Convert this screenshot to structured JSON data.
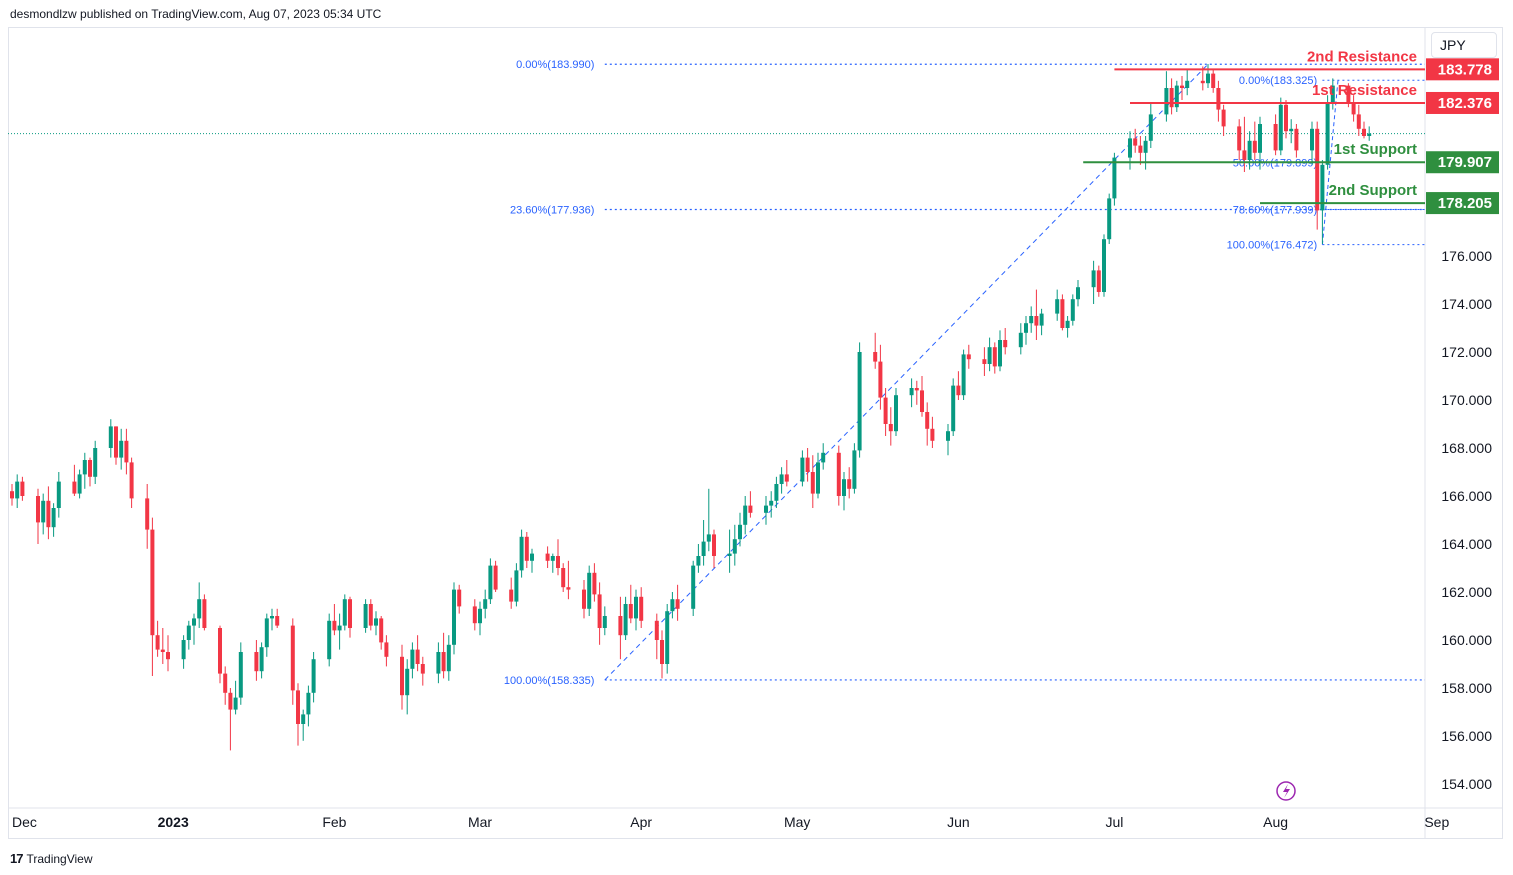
{
  "header": {
    "publisher_text": "desmondlzw published on TradingView.com, Aug 07, 2023 05:34 UTC"
  },
  "currency": "JPY",
  "footer": {
    "logo": "TradingView"
  },
  "colors": {
    "up": "#089981",
    "down": "#f23645",
    "fib": "#2962ff",
    "resistance": "#f23645",
    "support": "#2f8f3f",
    "price_line": "#089981"
  },
  "chart_data": {
    "type": "candlestick",
    "title": "JPY",
    "ylim": [
      153.0,
      185.5
    ],
    "y_ticks": [
      "154.000",
      "156.000",
      "158.000",
      "160.000",
      "162.000",
      "164.000",
      "166.000",
      "168.000",
      "170.000",
      "172.000",
      "174.000",
      "176.000"
    ],
    "y_tick_values": [
      154,
      156,
      158,
      160,
      162,
      164,
      166,
      168,
      170,
      172,
      174,
      176
    ],
    "x_labels": [
      {
        "label": "Dec",
        "day": 0
      },
      {
        "label": "2023",
        "day": 31
      },
      {
        "label": "Feb",
        "day": 62
      },
      {
        "label": "Mar",
        "day": 90
      },
      {
        "label": "Apr",
        "day": 121
      },
      {
        "label": "May",
        "day": 151
      },
      {
        "label": "Jun",
        "day": 182
      },
      {
        "label": "Jul",
        "day": 212
      },
      {
        "label": "Aug",
        "day": 243
      },
      {
        "label": "Sep",
        "day": 274
      }
    ],
    "bold_x_labels": [
      "2023"
    ],
    "current_price": 181.1,
    "levels": [
      {
        "name": "2nd Resistance",
        "value": 183.778,
        "label": "183.778",
        "kind": "resistance",
        "start_day": 212
      },
      {
        "name": "1st Resistance",
        "value": 182.376,
        "label": "182.376",
        "kind": "resistance",
        "start_day": 215
      },
      {
        "name": "1st Support",
        "value": 179.907,
        "label": "179.907",
        "kind": "support",
        "start_day": 206
      },
      {
        "name": "2nd Support",
        "value": 178.205,
        "label": "178.205",
        "kind": "support",
        "start_day": 240
      }
    ],
    "fib_left": [
      {
        "label": "0.00%(183.990)",
        "value": 183.99
      },
      {
        "label": "23.60%(177.936)",
        "value": 177.936
      },
      {
        "label": "100.00%(158.335)",
        "value": 158.335
      }
    ],
    "fib_right": [
      {
        "label": "0.00%(183.325)",
        "value": 183.325
      },
      {
        "label": "50.00%(179.899)",
        "value": 179.899
      },
      {
        "label": "78.60%(177.939)",
        "value": 177.939
      },
      {
        "label": "100.00%(176.472)",
        "value": 176.472
      }
    ],
    "candles": [
      [
        0,
        166.2,
        166.5,
        165.6,
        165.9
      ],
      [
        1,
        165.9,
        166.9,
        165.5,
        166.6
      ],
      [
        2,
        166.6,
        166.8,
        165.8,
        166.0
      ],
      [
        5,
        166.0,
        166.3,
        164.0,
        164.9
      ],
      [
        6,
        164.9,
        166.1,
        164.4,
        165.8
      ],
      [
        7,
        165.8,
        166.4,
        164.2,
        164.7
      ],
      [
        8,
        164.7,
        165.7,
        164.3,
        165.5
      ],
      [
        9,
        165.5,
        167.0,
        165.1,
        166.6
      ],
      [
        12,
        166.6,
        167.3,
        166.0,
        166.1
      ],
      [
        13,
        166.1,
        167.1,
        165.9,
        166.9
      ],
      [
        14,
        166.9,
        167.8,
        166.3,
        167.5
      ],
      [
        15,
        167.5,
        167.6,
        166.4,
        166.8
      ],
      [
        16,
        166.8,
        168.3,
        166.5,
        168.0
      ],
      [
        19,
        168.0,
        169.2,
        167.6,
        168.9
      ],
      [
        20,
        168.9,
        168.9,
        167.3,
        167.6
      ],
      [
        21,
        167.6,
        168.8,
        167.1,
        168.3
      ],
      [
        22,
        168.3,
        168.8,
        166.9,
        167.4
      ],
      [
        23,
        167.4,
        167.6,
        165.5,
        165.9
      ],
      [
        26,
        165.9,
        166.5,
        163.8,
        164.6
      ],
      [
        27,
        164.6,
        165.1,
        158.5,
        160.2
      ],
      [
        28,
        160.2,
        160.8,
        159.3,
        159.6
      ],
      [
        29,
        159.6,
        160.5,
        159.0,
        159.5
      ],
      [
        30,
        159.5,
        160.2,
        158.7,
        159.2
      ],
      [
        33,
        159.2,
        160.2,
        158.8,
        160.0
      ],
      [
        34,
        160.0,
        160.8,
        159.6,
        160.6
      ],
      [
        35,
        160.6,
        161.1,
        159.8,
        160.9
      ],
      [
        36,
        160.9,
        162.4,
        160.5,
        161.7
      ],
      [
        37,
        161.7,
        161.9,
        160.4,
        160.5
      ],
      [
        40,
        160.5,
        160.6,
        158.2,
        158.6
      ],
      [
        41,
        158.6,
        158.9,
        157.3,
        157.8
      ],
      [
        42,
        157.8,
        158.0,
        155.4,
        157.1
      ],
      [
        43,
        157.1,
        158.3,
        156.9,
        157.6
      ],
      [
        44,
        157.6,
        159.9,
        157.3,
        159.5
      ],
      [
        47,
        159.5,
        160.0,
        158.3,
        158.7
      ],
      [
        48,
        158.7,
        159.9,
        158.4,
        159.7
      ],
      [
        49,
        159.7,
        161.1,
        159.3,
        160.9
      ],
      [
        50,
        160.9,
        161.3,
        160.4,
        161.0
      ],
      [
        51,
        161.0,
        161.3,
        160.5,
        160.6
      ],
      [
        54,
        160.6,
        160.9,
        157.3,
        157.9
      ],
      [
        55,
        157.9,
        158.2,
        155.6,
        156.5
      ],
      [
        56,
        156.5,
        157.1,
        155.8,
        156.9
      ],
      [
        57,
        156.9,
        158.1,
        156.4,
        157.8
      ],
      [
        58,
        157.8,
        159.5,
        157.4,
        159.2
      ],
      [
        61,
        159.2,
        161.1,
        158.9,
        160.8
      ],
      [
        62,
        160.8,
        161.5,
        160.2,
        160.4
      ],
      [
        63,
        160.4,
        161.1,
        159.6,
        160.6
      ],
      [
        64,
        160.6,
        161.9,
        160.4,
        161.7
      ],
      [
        65,
        161.7,
        161.8,
        160.1,
        160.5
      ],
      [
        68,
        160.5,
        161.7,
        160.3,
        161.5
      ],
      [
        69,
        161.5,
        161.7,
        160.4,
        160.6
      ],
      [
        70,
        160.6,
        161.2,
        160.2,
        160.9
      ],
      [
        71,
        160.9,
        161.0,
        159.6,
        159.9
      ],
      [
        72,
        159.9,
        160.2,
        158.9,
        159.3
      ],
      [
        75,
        159.3,
        159.8,
        157.1,
        157.7
      ],
      [
        76,
        157.7,
        159.2,
        156.9,
        158.8
      ],
      [
        77,
        158.8,
        159.9,
        158.4,
        159.6
      ],
      [
        78,
        159.6,
        160.2,
        158.7,
        159.0
      ],
      [
        79,
        159.0,
        159.3,
        158.1,
        158.6
      ],
      [
        82,
        158.6,
        159.9,
        158.2,
        159.5
      ],
      [
        83,
        159.5,
        160.3,
        158.4,
        158.7
      ],
      [
        84,
        158.7,
        160.2,
        158.3,
        159.8
      ],
      [
        85,
        159.8,
        162.4,
        159.4,
        162.1
      ],
      [
        86,
        162.1,
        162.3,
        161.1,
        161.4
      ],
      [
        89,
        161.4,
        161.7,
        160.4,
        160.7
      ],
      [
        90,
        160.7,
        161.6,
        160.2,
        161.3
      ],
      [
        91,
        161.3,
        162.1,
        160.9,
        161.7
      ],
      [
        92,
        161.7,
        163.4,
        161.5,
        163.1
      ],
      [
        93,
        163.1,
        163.3,
        162.0,
        162.1
      ],
      [
        96,
        162.1,
        162.6,
        161.3,
        161.6
      ],
      [
        97,
        161.6,
        163.2,
        161.4,
        162.9
      ],
      [
        98,
        162.9,
        164.6,
        162.6,
        164.3
      ],
      [
        99,
        164.3,
        164.5,
        163.0,
        163.3
      ],
      [
        100,
        163.3,
        163.8,
        162.8,
        163.6
      ],
      [
        103,
        163.6,
        163.9,
        163.0,
        163.3
      ],
      [
        104,
        163.3,
        163.6,
        162.8,
        163.5
      ],
      [
        105,
        163.5,
        164.2,
        162.7,
        163.0
      ],
      [
        106,
        163.0,
        163.2,
        162.0,
        162.2
      ],
      [
        107,
        162.2,
        163.3,
        161.7,
        162.1
      ],
      [
        110,
        162.1,
        162.5,
        160.9,
        161.3
      ],
      [
        111,
        161.3,
        163.1,
        161.0,
        162.8
      ],
      [
        112,
        162.8,
        163.2,
        161.6,
        161.9
      ],
      [
        113,
        161.9,
        162.4,
        159.8,
        160.5
      ],
      [
        114,
        160.5,
        161.4,
        160.2,
        161.0
      ],
      [
        117,
        161.0,
        161.8,
        159.2,
        160.2
      ],
      [
        118,
        160.2,
        161.8,
        160.0,
        161.5
      ],
      [
        119,
        161.5,
        162.3,
        160.7,
        160.9
      ],
      [
        120,
        160.9,
        162.1,
        160.4,
        161.8
      ],
      [
        121,
        161.8,
        162.2,
        160.5,
        160.8
      ],
      [
        124,
        160.8,
        161.1,
        159.2,
        160.0
      ],
      [
        125,
        160.0,
        160.4,
        158.4,
        159.0
      ],
      [
        126,
        159.0,
        161.5,
        158.6,
        161.2
      ],
      [
        127,
        161.2,
        162.0,
        160.9,
        161.7
      ],
      [
        128,
        161.7,
        162.3,
        160.8,
        161.3
      ],
      [
        131,
        161.3,
        163.3,
        161.0,
        163.1
      ],
      [
        132,
        163.1,
        164.0,
        162.8,
        163.5
      ],
      [
        133,
        163.5,
        165.0,
        163.1,
        164.1
      ],
      [
        134,
        164.1,
        166.3,
        163.7,
        164.4
      ],
      [
        135,
        164.4,
        164.6,
        163.0,
        163.5
      ],
      [
        138,
        163.5,
        164.6,
        162.8,
        163.6
      ],
      [
        139,
        163.6,
        164.8,
        163.1,
        164.2
      ],
      [
        140,
        164.2,
        165.3,
        163.9,
        164.8
      ],
      [
        141,
        164.8,
        166.0,
        164.4,
        165.6
      ],
      [
        142,
        165.6,
        166.2,
        165.1,
        165.3
      ],
      [
        145,
        165.3,
        166.0,
        164.8,
        165.6
      ],
      [
        146,
        165.6,
        166.2,
        165.1,
        165.8
      ],
      [
        147,
        165.8,
        166.8,
        165.5,
        166.5
      ],
      [
        148,
        166.5,
        167.2,
        166.1,
        166.9
      ],
      [
        149,
        166.9,
        167.5,
        166.4,
        166.6
      ],
      [
        152,
        166.6,
        167.9,
        166.4,
        167.6
      ],
      [
        153,
        167.6,
        168.0,
        166.6,
        167.0
      ],
      [
        154,
        167.0,
        167.7,
        165.5,
        166.1
      ],
      [
        155,
        166.1,
        167.8,
        165.9,
        167.4
      ],
      [
        156,
        167.4,
        168.2,
        167.1,
        167.8
      ],
      [
        159,
        167.8,
        168.1,
        165.6,
        166.0
      ],
      [
        160,
        166.0,
        167.0,
        165.4,
        166.7
      ],
      [
        161,
        166.7,
        167.2,
        165.9,
        166.3
      ],
      [
        162,
        166.3,
        168.2,
        166.1,
        167.9
      ],
      [
        163,
        167.9,
        172.4,
        167.6,
        172.0
      ],
      [
        166,
        172.0,
        172.8,
        171.3,
        171.6
      ],
      [
        167,
        171.6,
        172.3,
        169.6,
        170.1
      ],
      [
        168,
        170.1,
        170.5,
        168.5,
        169.0
      ],
      [
        169,
        169.0,
        169.7,
        168.1,
        168.7
      ],
      [
        170,
        168.7,
        170.5,
        168.5,
        170.2
      ],
      [
        173,
        170.2,
        170.9,
        169.7,
        170.5
      ],
      [
        174,
        170.5,
        170.8,
        169.8,
        170.4
      ],
      [
        175,
        170.4,
        171.0,
        169.3,
        169.5
      ],
      [
        176,
        169.5,
        169.9,
        168.1,
        168.8
      ],
      [
        177,
        168.8,
        169.3,
        168.0,
        168.3
      ],
      [
        180,
        168.3,
        169.0,
        167.7,
        168.7
      ],
      [
        181,
        168.7,
        170.9,
        168.5,
        170.6
      ],
      [
        182,
        170.6,
        171.2,
        170.0,
        170.2
      ],
      [
        183,
        170.2,
        172.1,
        170.0,
        171.9
      ],
      [
        184,
        171.9,
        172.3,
        171.3,
        171.7
      ],
      [
        187,
        171.7,
        172.2,
        171.0,
        171.5
      ],
      [
        188,
        171.5,
        172.6,
        171.2,
        172.2
      ],
      [
        189,
        172.2,
        172.4,
        171.1,
        171.4
      ],
      [
        190,
        171.4,
        172.9,
        171.2,
        172.5
      ],
      [
        191,
        172.5,
        173.0,
        171.9,
        172.2
      ],
      [
        194,
        172.2,
        173.2,
        171.9,
        172.8
      ],
      [
        195,
        172.8,
        173.5,
        172.3,
        173.2
      ],
      [
        196,
        173.2,
        173.9,
        172.8,
        173.5
      ],
      [
        197,
        173.5,
        174.6,
        172.5,
        173.1
      ],
      [
        198,
        173.1,
        173.8,
        172.7,
        173.6
      ],
      [
        201,
        173.6,
        174.6,
        173.3,
        174.2
      ],
      [
        202,
        174.2,
        174.4,
        172.9,
        173.0
      ],
      [
        203,
        173.0,
        173.5,
        172.6,
        173.3
      ],
      [
        204,
        173.3,
        174.4,
        173.1,
        174.2
      ],
      [
        205,
        174.2,
        175.0,
        173.9,
        174.7
      ],
      [
        208,
        174.7,
        175.8,
        174.0,
        175.4
      ],
      [
        209,
        175.4,
        175.6,
        174.3,
        174.5
      ],
      [
        210,
        174.5,
        176.9,
        174.3,
        176.7
      ],
      [
        211,
        176.7,
        178.6,
        176.5,
        178.4
      ],
      [
        212,
        178.4,
        180.3,
        178.1,
        180.1
      ],
      [
        215,
        180.1,
        181.2,
        179.6,
        180.9
      ],
      [
        216,
        180.9,
        181.3,
        180.3,
        180.6
      ],
      [
        217,
        180.6,
        181.0,
        179.8,
        180.3
      ],
      [
        218,
        180.3,
        181.0,
        179.6,
        180.8
      ],
      [
        219,
        180.8,
        182.4,
        180.5,
        181.9
      ],
      [
        222,
        181.9,
        183.7,
        181.6,
        183.0
      ],
      [
        223,
        183.0,
        183.4,
        181.9,
        182.2
      ],
      [
        224,
        182.2,
        183.3,
        182.0,
        183.1
      ],
      [
        225,
        183.1,
        183.5,
        182.5,
        183.0
      ],
      [
        226,
        183.0,
        183.8,
        182.7,
        183.3
      ],
      [
        229,
        183.3,
        183.9,
        182.9,
        183.2
      ],
      [
        230,
        183.2,
        184.0,
        183.0,
        183.6
      ],
      [
        231,
        183.6,
        183.8,
        182.8,
        183.0
      ],
      [
        232,
        183.0,
        183.3,
        181.6,
        182.1
      ],
      [
        233,
        182.1,
        182.3,
        181.0,
        181.4
      ],
      [
        236,
        181.4,
        181.7,
        180.0,
        180.4
      ],
      [
        237,
        180.4,
        181.8,
        179.5,
        180.0
      ],
      [
        238,
        180.0,
        181.2,
        179.6,
        180.8
      ],
      [
        239,
        180.8,
        181.6,
        180.0,
        180.3
      ],
      [
        240,
        180.3,
        181.8,
        179.6,
        181.5
      ],
      [
        243,
        181.5,
        181.9,
        180.2,
        180.4
      ],
      [
        244,
        180.4,
        182.6,
        180.2,
        182.3
      ],
      [
        245,
        182.3,
        182.5,
        180.9,
        181.2
      ],
      [
        246,
        181.2,
        181.7,
        180.7,
        181.3
      ],
      [
        247,
        181.3,
        181.5,
        180.1,
        180.4
      ],
      [
        250,
        180.4,
        181.6,
        179.8,
        181.3
      ],
      [
        251,
        181.3,
        181.6,
        177.1,
        177.9
      ],
      [
        252,
        177.9,
        180.0,
        176.5,
        179.8
      ],
      [
        253,
        179.8,
        182.7,
        179.6,
        182.4
      ],
      [
        254,
        182.4,
        183.4,
        182.1,
        183.1
      ],
      [
        257,
        183.1,
        183.2,
        182.2,
        182.4
      ],
      [
        258,
        182.4,
        182.7,
        181.6,
        181.9
      ],
      [
        259,
        181.9,
        182.3,
        181.0,
        181.3
      ],
      [
        260,
        181.3,
        181.6,
        180.9,
        181.0
      ],
      [
        261,
        181.0,
        181.4,
        180.8,
        181.1
      ]
    ]
  }
}
